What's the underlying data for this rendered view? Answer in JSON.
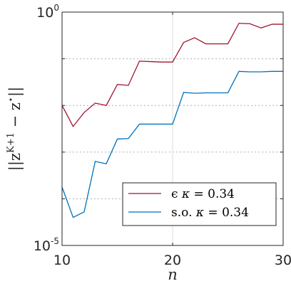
{
  "chart_data": {
    "type": "line",
    "xlabel": "n",
    "ylabel": "||z^{K+1} − z*||",
    "xlim": [
      10,
      30
    ],
    "ylim_log10": [
      -5,
      0
    ],
    "y_scale": "log",
    "x_ticks": [
      "10",
      "20",
      "30"
    ],
    "y_ticks": [
      {
        "base": "10",
        "exp": "0"
      },
      {
        "base": "10",
        "exp": "-5"
      }
    ],
    "grid": "dotted horizontal at decades, solid vertical at x=20",
    "legend_position": "bottom-right",
    "x": [
      10,
      11,
      12,
      13,
      14,
      15,
      16,
      17,
      18,
      19,
      20,
      21,
      22,
      23,
      24,
      25,
      26,
      27,
      28,
      29,
      30
    ],
    "series": [
      {
        "name": "ϵ κ = 0.34",
        "legend": {
          "prefix": "ϵ ",
          "var": "κ",
          "rest": " = 0.34"
        },
        "color": "#a2142f",
        "log10_values": [
          -2.0,
          -2.45,
          -2.15,
          -1.95,
          -2.0,
          -1.55,
          -1.57,
          -1.05,
          -1.06,
          -1.07,
          -1.07,
          -0.65,
          -0.55,
          -0.68,
          -0.68,
          -0.68,
          -0.24,
          -0.25,
          -0.34,
          -0.26,
          -0.26
        ]
      },
      {
        "name": "s.o. κ = 0.34",
        "legend": {
          "prefix": "s.o. ",
          "var": "κ",
          "rest": " = 0.34"
        },
        "color": "#0072bd",
        "log10_values": [
          -3.75,
          -4.4,
          -4.28,
          -3.2,
          -3.25,
          -2.72,
          -2.71,
          -2.4,
          -2.4,
          -2.4,
          -2.4,
          -1.72,
          -1.74,
          -1.73,
          -1.73,
          -1.73,
          -1.27,
          -1.28,
          -1.28,
          -1.27,
          -1.27
        ]
      }
    ]
  }
}
